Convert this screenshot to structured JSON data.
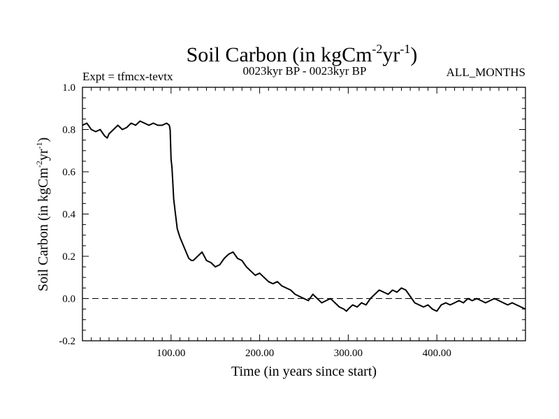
{
  "chart_data": {
    "type": "line",
    "title": {
      "base": "Soil Carbon (in kgCm",
      "sup1": "-2",
      "mid": "yr",
      "sup2": "-1",
      "end": ")"
    },
    "expt": "Expt = tfmcx-tevtx",
    "period": "0023kyr BP - 0023kyr BP",
    "months": "ALL_MONTHS",
    "xlabel": "Time (in years since start)",
    "ylabel": {
      "base": "Soil Carbon (in kgCm",
      "sup1": "-2",
      "mid": "yr",
      "sup2": "-1",
      "end": ")"
    },
    "xlim": [
      0,
      500
    ],
    "ylim": [
      -0.2,
      1.0
    ],
    "xticks": [
      100,
      200,
      300,
      400
    ],
    "xtick_labels": [
      "100.00",
      "200.00",
      "300.00",
      "400.00"
    ],
    "yticks": [
      -0.2,
      0.0,
      0.2,
      0.4,
      0.6,
      0.8,
      1.0
    ],
    "ytick_labels": [
      "-0.2",
      "0.0",
      "0.2",
      "0.4",
      "0.6",
      "0.8",
      "1.0"
    ],
    "reference_line": {
      "y": 0.0,
      "style": "dashed"
    },
    "series": [
      {
        "name": "Soil Carbon",
        "x": [
          0,
          5,
          10,
          15,
          20,
          25,
          28,
          30,
          35,
          40,
          45,
          50,
          55,
          60,
          65,
          70,
          75,
          80,
          85,
          90,
          95,
          98,
          99,
          100,
          101,
          102,
          103,
          105,
          107,
          110,
          115,
          120,
          123,
          125,
          130,
          135,
          140,
          145,
          150,
          155,
          160,
          165,
          170,
          175,
          180,
          185,
          190,
          195,
          200,
          205,
          210,
          215,
          220,
          225,
          230,
          235,
          240,
          245,
          250,
          255,
          260,
          265,
          270,
          275,
          280,
          285,
          290,
          295,
          298,
          300,
          305,
          310,
          315,
          320,
          325,
          330,
          335,
          340,
          345,
          350,
          355,
          360,
          365,
          370,
          375,
          380,
          385,
          390,
          395,
          400,
          405,
          410,
          415,
          420,
          425,
          430,
          435,
          440,
          445,
          450,
          455,
          460,
          465,
          470,
          475,
          480,
          485,
          490,
          495,
          500
        ],
        "values": [
          0.82,
          0.83,
          0.8,
          0.79,
          0.8,
          0.77,
          0.76,
          0.78,
          0.8,
          0.82,
          0.8,
          0.81,
          0.83,
          0.82,
          0.84,
          0.83,
          0.82,
          0.83,
          0.82,
          0.82,
          0.83,
          0.82,
          0.8,
          0.66,
          0.62,
          0.55,
          0.47,
          0.4,
          0.33,
          0.29,
          0.24,
          0.19,
          0.18,
          0.18,
          0.2,
          0.22,
          0.18,
          0.17,
          0.15,
          0.16,
          0.19,
          0.21,
          0.22,
          0.19,
          0.18,
          0.15,
          0.13,
          0.11,
          0.12,
          0.1,
          0.08,
          0.07,
          0.08,
          0.06,
          0.05,
          0.04,
          0.02,
          0.01,
          0.0,
          -0.01,
          0.02,
          0.0,
          -0.02,
          -0.01,
          0.0,
          -0.02,
          -0.04,
          -0.05,
          -0.06,
          -0.05,
          -0.03,
          -0.04,
          -0.02,
          -0.03,
          0.0,
          0.02,
          0.04,
          0.03,
          0.02,
          0.04,
          0.03,
          0.05,
          0.04,
          0.01,
          -0.02,
          -0.03,
          -0.04,
          -0.03,
          -0.05,
          -0.06,
          -0.03,
          -0.02,
          -0.03,
          -0.02,
          -0.01,
          -0.02,
          0.0,
          -0.01,
          0.0,
          -0.01,
          -0.02,
          -0.01,
          0.0,
          -0.01,
          -0.02,
          -0.03,
          -0.02,
          -0.03,
          -0.04,
          -0.05
        ],
        "color": "#000000"
      }
    ]
  }
}
